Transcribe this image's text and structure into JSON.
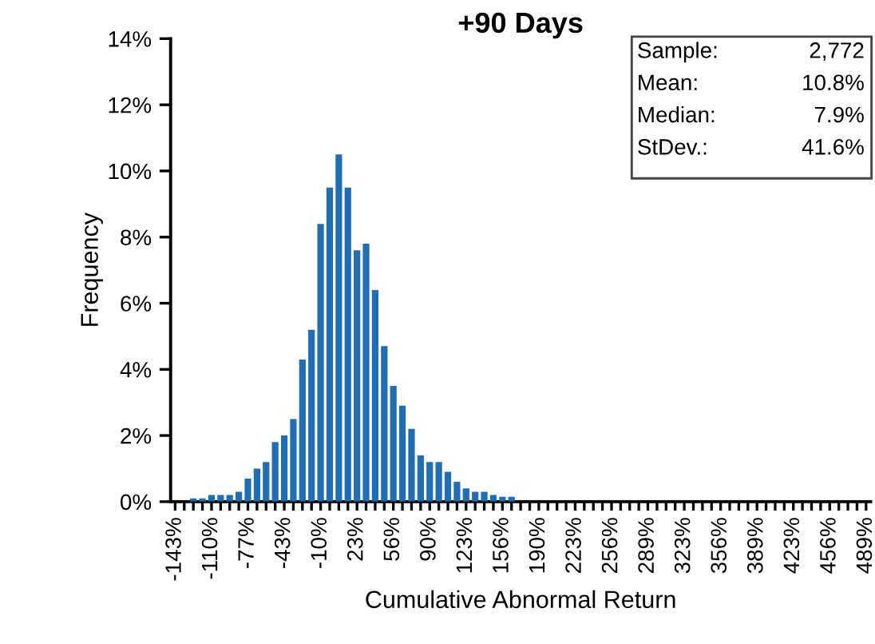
{
  "chart_data": {
    "type": "bar",
    "title": "+90 Days",
    "xlabel": "Cumulative Abnormal Return",
    "ylabel": "Frequency",
    "categories": [
      "-143%",
      null,
      null,
      null,
      "-110%",
      null,
      null,
      null,
      "-77%",
      null,
      null,
      null,
      "-43%",
      null,
      null,
      null,
      "-10%",
      null,
      null,
      null,
      "23%",
      null,
      null,
      null,
      "56%",
      null,
      null,
      null,
      "90%",
      null,
      null,
      null,
      "123%",
      null,
      null,
      null,
      "156%",
      null,
      null,
      null,
      "190%",
      null,
      null,
      null,
      "223%",
      null,
      null,
      null,
      "256%",
      null,
      null,
      null,
      "289%",
      null,
      null,
      null,
      "323%",
      null,
      null,
      null,
      "356%",
      null,
      null,
      null,
      "389%",
      null,
      null,
      null,
      "423%",
      null,
      null,
      null,
      "456%",
      null,
      null,
      null,
      "489%"
    ],
    "values": [
      0,
      0,
      0.1,
      0.1,
      0.2,
      0.2,
      0.2,
      0.3,
      0.7,
      1.0,
      1.2,
      1.8,
      2.0,
      2.5,
      4.3,
      5.2,
      8.4,
      9.5,
      10.5,
      9.5,
      7.6,
      7.8,
      6.4,
      4.7,
      3.5,
      2.9,
      2.2,
      1.4,
      1.2,
      1.2,
      0.9,
      0.6,
      0.4,
      0.3,
      0.3,
      0.2,
      0.15,
      0.15,
      0,
      0,
      0,
      0,
      0,
      0,
      0,
      0,
      0,
      0,
      0,
      0,
      0,
      0,
      0,
      0,
      0,
      0,
      0,
      0,
      0,
      0,
      0,
      0,
      0,
      0,
      0,
      0,
      0,
      0,
      0,
      0,
      0,
      0,
      0,
      0,
      0,
      0,
      0
    ],
    "color": "#1f6db3",
    "ylim": [
      0,
      14
    ],
    "yticks": [
      {
        "value": 0,
        "label": "0%"
      },
      {
        "value": 2,
        "label": "2%"
      },
      {
        "value": 4,
        "label": "4%"
      },
      {
        "value": 6,
        "label": "6%"
      },
      {
        "value": 8,
        "label": "8%"
      },
      {
        "value": 10,
        "label": "10%"
      },
      {
        "value": 12,
        "label": "12%"
      },
      {
        "value": 14,
        "label": "14%"
      }
    ],
    "grid": false,
    "legend": false,
    "annotations": [
      "Sample:",
      "2,772",
      "Mean:",
      "10.8%",
      "Median:",
      "7.9%",
      "StDev.:",
      "41.6%"
    ]
  }
}
